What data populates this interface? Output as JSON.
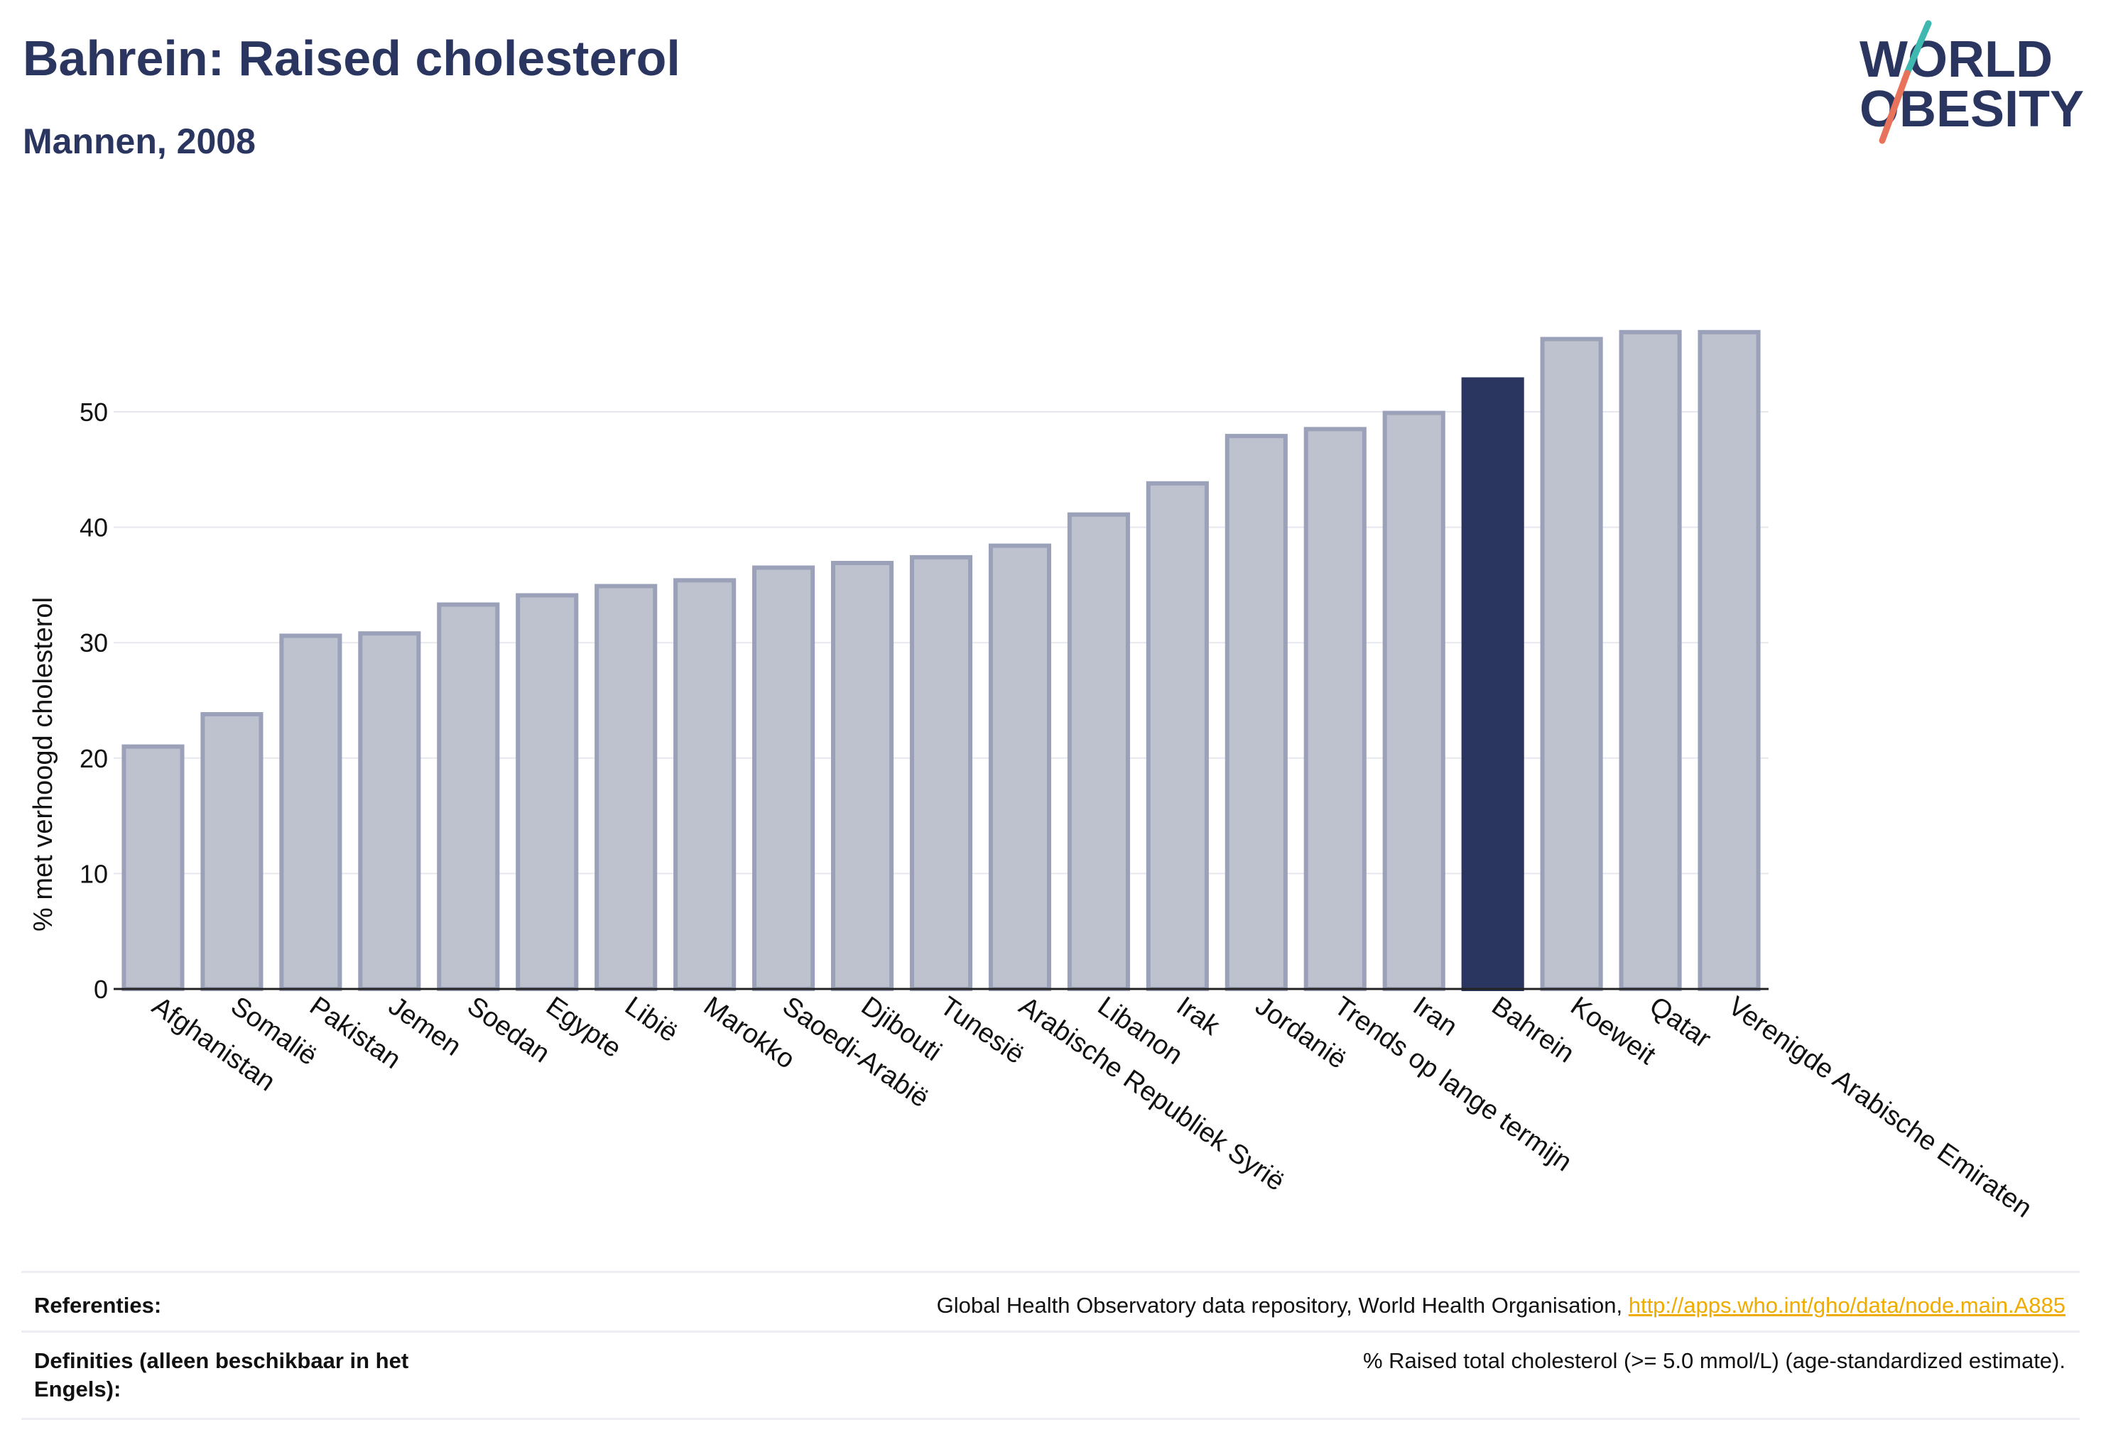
{
  "header": {
    "title": "Bahrein: Raised cholesterol",
    "subtitle": "Mannen, 2008"
  },
  "logo": {
    "line1": "WORLD",
    "line2": "OBESITY"
  },
  "colors": {
    "highlight": "#2a3660",
    "bar_fill": "#bec2ce",
    "bar_stroke": "#9aa1b8",
    "grid": "#e6e8ee",
    "link": "#f0ab00",
    "logo_teal": "#3fb8b0",
    "logo_coral": "#e8735a"
  },
  "chart_data": {
    "type": "bar",
    "ylabel": "% met verhoogd cholesterol",
    "ylim": [
      0,
      60
    ],
    "yticks": [
      0,
      10,
      20,
      30,
      40,
      50
    ],
    "grid": true,
    "highlight": "Bahrein",
    "categories": [
      "Afghanistan",
      "Somalië",
      "Pakistan",
      "Jemen",
      "Soedan",
      "Egypte",
      "Libië",
      "Marokko",
      "Saoedi-Arabië",
      "Djibouti",
      "Tunesië",
      "Arabische Republiek Syrië",
      "Libanon",
      "Irak",
      "Jordanië",
      "Trends op lange termijn",
      "Iran",
      "Bahrein",
      "Koeweit",
      "Qatar",
      "Verenigde Arabische Emiraten"
    ],
    "values": [
      21.0,
      23.8,
      30.6,
      30.8,
      33.3,
      34.1,
      34.9,
      35.4,
      36.5,
      36.9,
      37.4,
      38.4,
      41.1,
      43.8,
      47.9,
      48.5,
      49.9,
      52.8,
      56.3,
      56.9,
      56.9
    ]
  },
  "footer": {
    "references_label": "Referenties:",
    "references_text": "Global Health Observatory data repository, World Health Organisation, ",
    "references_link": "http://apps.who.int/gho/data/node.main.A885",
    "definitions_label": "Definities (alleen beschikbaar in het Engels):",
    "definitions_text": "% Raised total cholesterol (>= 5.0 mmol/L) (age-standardized estimate)."
  }
}
